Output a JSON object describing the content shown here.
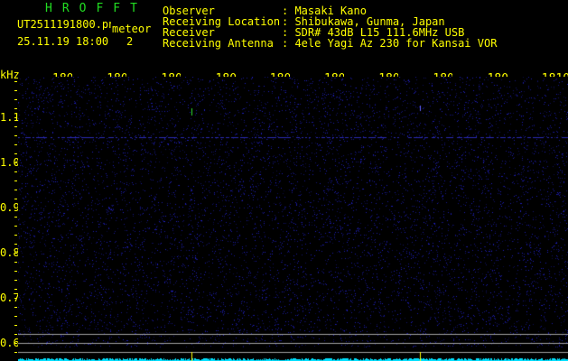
{
  "app": {
    "title": "HROFFT",
    "filename": "UT2511191800.png",
    "mode": "meteor",
    "datetime": "25.11.19 18:00",
    "count": "2"
  },
  "info": {
    "labels": [
      "Observer",
      "Receiving Location",
      "Receiver",
      "Receiving Antenna"
    ],
    "values": [
      ": Masaki Kano",
      ": Shibukawa, Gunma, Japan",
      ": SDR# 43dB L15 111.6MHz USB",
      ": 4ele Yagi Az 230 for Kansai VOR"
    ]
  },
  "axis": {
    "y_unit": "kHz",
    "y_labels": [
      "1.1",
      "1.0",
      "0.9",
      "0.8",
      "0.7",
      "0.6"
    ],
    "x_labels": [
      "1801",
      "1802",
      "1803",
      "1804",
      "1805",
      "1806",
      "1807",
      "1808",
      "1809",
      "1810"
    ]
  },
  "colors": {
    "text": "#ffff00",
    "title": "#22dd22",
    "noise": "#1010a0",
    "baseline": "#00e0ff",
    "guide": "#a0a0a0"
  }
}
